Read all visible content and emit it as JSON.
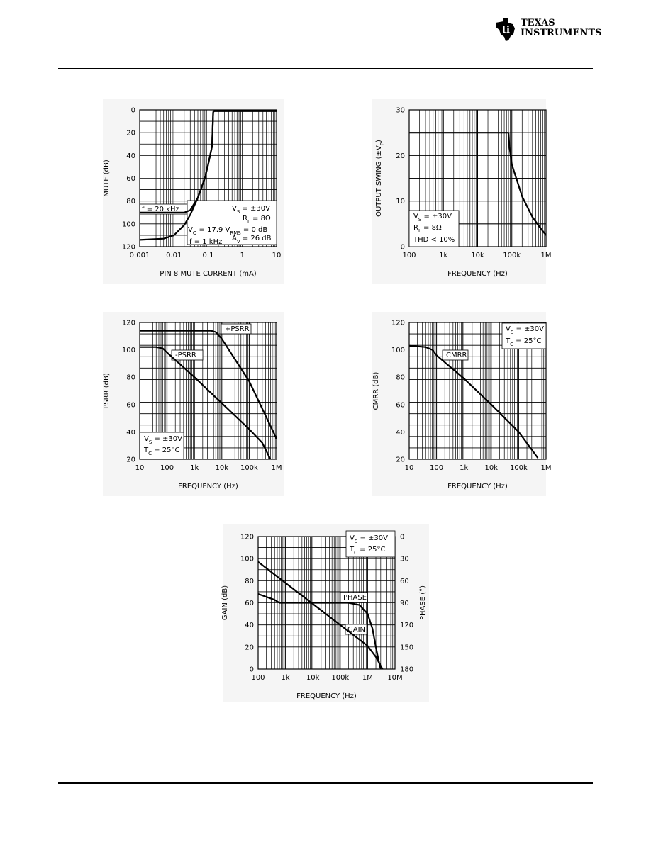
{
  "header": {
    "logo_line1": "Texas",
    "logo_line2": "Instruments"
  },
  "chart_data": [
    {
      "type": "line",
      "xscale": "log",
      "yscale": "linear",
      "y_inverted": true,
      "xlim": [
        0.001,
        10
      ],
      "ylim": [
        0,
        120
      ],
      "xticks": [
        0.001,
        0.01,
        0.1,
        1,
        10
      ],
      "xtick_labels": [
        "0.001",
        "0.01",
        "0.1",
        "1",
        "10"
      ],
      "yticks": [
        0,
        20,
        40,
        60,
        80,
        100,
        120
      ],
      "ytick_labels": [
        "0",
        "20",
        "40",
        "60",
        "80",
        "100",
        "120"
      ],
      "xlabel": "PIN 8 MUTE CURRENT (mA)",
      "ylabel": "MUTE (dB)",
      "grid": true,
      "series": [
        {
          "name": "f = 20 kHz",
          "x": [
            0.001,
            0.02,
            0.03,
            0.05,
            0.08,
            0.1,
            0.13,
            0.14,
            0.15,
            0.2,
            1,
            10
          ],
          "y": [
            90,
            90,
            88,
            77,
            60,
            48,
            32,
            2,
            1,
            1,
            1,
            1
          ]
        },
        {
          "name": "f = 1 kHz",
          "x": [
            0.001,
            0.005,
            0.01,
            0.02,
            0.03,
            0.05,
            0.08,
            0.1,
            0.13,
            0.14,
            0.15,
            0.2,
            1,
            10
          ],
          "y": [
            114,
            113,
            110,
            101,
            92,
            77,
            60,
            48,
            32,
            2,
            1,
            1,
            1,
            1
          ]
        }
      ],
      "annotations": [
        "f = 20 kHz",
        "f = 1 kHz",
        "V_S = ±30V",
        "R_L = 8Ω",
        "V_O = 17.9 V_RMS = 0 dB",
        "A_V = 26 dB"
      ]
    },
    {
      "type": "line",
      "xscale": "log",
      "yscale": "linear",
      "xlim": [
        100,
        1000000
      ],
      "ylim": [
        0,
        30
      ],
      "xticks": [
        100,
        1000,
        10000,
        100000,
        1000000
      ],
      "xtick_labels": [
        "100",
        "1k",
        "10k",
        "100k",
        "1M"
      ],
      "yticks": [
        0,
        10,
        20,
        30
      ],
      "ytick_labels": [
        "0",
        "10",
        "20",
        "30"
      ],
      "xlabel": "FREQUENCY (Hz)",
      "ylabel": "OUTPUT SWING (±V_P)",
      "grid": true,
      "series": [
        {
          "name": "",
          "x": [
            100,
            1000,
            10000,
            80000,
            85000,
            100000,
            200000,
            400000,
            700000,
            1000000
          ],
          "y": [
            25,
            25,
            25,
            25,
            22,
            18,
            11,
            6.5,
            4,
            2.5
          ]
        }
      ],
      "annotations": [
        "V_S = ±30V",
        "R_L = 8Ω",
        "THD < 10%"
      ]
    },
    {
      "type": "line",
      "xscale": "log",
      "yscale": "linear",
      "xlim": [
        10,
        1000000
      ],
      "ylim": [
        20,
        120
      ],
      "xticks": [
        10,
        100,
        1000,
        10000,
        100000,
        1000000
      ],
      "xtick_labels": [
        "10",
        "100",
        "1k",
        "10k",
        "100k",
        "1M"
      ],
      "yticks": [
        20,
        40,
        60,
        80,
        100,
        120
      ],
      "ytick_labels": [
        "20",
        "40",
        "60",
        "80",
        "100",
        "120"
      ],
      "xlabel": "FREQUENCY (Hz)",
      "ylabel": "PSRR (dB)",
      "grid": true,
      "series": [
        {
          "name": "+PSRR",
          "x": [
            10,
            100,
            1000,
            4000,
            6000,
            10000,
            100000,
            1000000
          ],
          "y": [
            114,
            114,
            114,
            114,
            113,
            108,
            77,
            35
          ]
        },
        {
          "name": "-PSRR",
          "x": [
            10,
            40,
            70,
            100,
            1000,
            10000,
            100000,
            300000,
            600000
          ],
          "y": [
            102,
            102,
            101,
            98,
            80,
            61,
            42,
            32,
            20
          ]
        }
      ],
      "annotations": [
        "+PSRR",
        "-PSRR",
        "V_S = ±30V",
        "T_C = 25°C"
      ]
    },
    {
      "type": "line",
      "xscale": "log",
      "yscale": "linear",
      "xlim": [
        10,
        1000000
      ],
      "ylim": [
        20,
        120
      ],
      "xticks": [
        10,
        100,
        1000,
        10000,
        100000,
        1000000
      ],
      "xtick_labels": [
        "10",
        "100",
        "1k",
        "10k",
        "100k",
        "1M"
      ],
      "yticks": [
        20,
        40,
        60,
        80,
        100,
        120
      ],
      "ytick_labels": [
        "20",
        "40",
        "60",
        "80",
        "100",
        "120"
      ],
      "xlabel": "FREQUENCY (Hz)",
      "ylabel": "CMRR (dB)",
      "grid": true,
      "series": [
        {
          "name": "CMRR",
          "x": [
            10,
            40,
            70,
            100,
            1000,
            10000,
            100000,
            500000
          ],
          "y": [
            103,
            102,
            100,
            96,
            79,
            60,
            40,
            21
          ]
        }
      ],
      "annotations": [
        "CMRR",
        "V_S = ±30V",
        "T_C = 25°C"
      ]
    },
    {
      "type": "line",
      "xscale": "log",
      "yscale": "linear",
      "xlim": [
        100,
        10000000
      ],
      "ylim": [
        0,
        120
      ],
      "xticks": [
        100,
        1000,
        10000,
        100000,
        1000000,
        10000000
      ],
      "xtick_labels": [
        "100",
        "1k",
        "10k",
        "100k",
        "1M",
        "10M"
      ],
      "yticks": [
        0,
        20,
        40,
        60,
        80,
        100,
        120
      ],
      "ytick_labels": [
        "0",
        "20",
        "40",
        "60",
        "80",
        "100",
        "120"
      ],
      "y2lim": [
        0,
        180
      ],
      "y2_inverted": true,
      "y2ticks": [
        0,
        30,
        60,
        90,
        120,
        150,
        180
      ],
      "y2tick_labels": [
        "0",
        "30",
        "60",
        "90",
        "120",
        "150",
        "180"
      ],
      "xlabel": "FREQUENCY (Hz)",
      "ylabel": "GAIN (dB)",
      "y2label": "PHASE (°)",
      "grid": true,
      "series": [
        {
          "name": "GAIN",
          "axis": "left",
          "x": [
            100,
            1000,
            10000,
            100000,
            1000000,
            2000000,
            3500000
          ],
          "y": [
            97,
            78,
            59,
            40,
            21,
            11,
            0
          ]
        },
        {
          "name": "PHASE",
          "axis": "right",
          "x": [
            100,
            400,
            600,
            1000,
            10000,
            200000,
            500000,
            1000000,
            1500000,
            2000000,
            2500000,
            3000000
          ],
          "y": [
            78,
            86,
            90,
            90,
            90,
            90,
            93,
            105,
            125,
            150,
            168,
            180
          ]
        }
      ],
      "annotations": [
        "GAIN",
        "PHASE",
        "V_S = ±30V",
        "T_C = 25°C"
      ]
    }
  ]
}
